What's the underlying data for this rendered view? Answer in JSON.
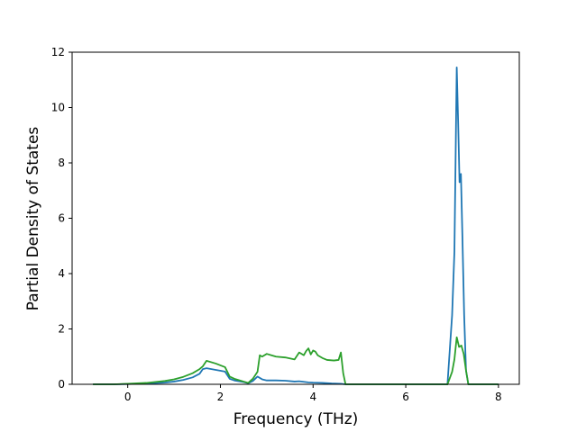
{
  "chart_data": {
    "type": "line",
    "title": "",
    "xlabel": "Frequency (THz)",
    "ylabel": "Partial Density of States",
    "xlim": [
      -1.2,
      8.45
    ],
    "ylim": [
      0,
      12
    ],
    "xticks": [
      0,
      2,
      4,
      6,
      8
    ],
    "yticks": [
      0,
      2,
      4,
      6,
      8,
      10,
      12
    ],
    "grid": false,
    "legend": "none",
    "series": [
      {
        "color": "#1f77b4",
        "x": [
          -0.75,
          -0.3,
          0,
          0.4,
          0.8,
          1.0,
          1.2,
          1.4,
          1.55,
          1.62,
          1.7,
          1.9,
          2.1,
          2.2,
          2.3,
          2.5,
          2.6,
          2.7,
          2.8,
          2.9,
          3.0,
          3.2,
          3.4,
          3.6,
          3.7,
          3.8,
          3.9,
          4.0,
          4.2,
          4.4,
          4.6,
          4.7,
          5.0,
          6.0,
          6.9,
          7.0,
          7.05,
          7.1,
          7.13,
          7.16,
          7.19,
          7.22,
          7.26,
          7.3,
          7.35,
          8.0
        ],
        "y": [
          0,
          0,
          0.01,
          0.03,
          0.06,
          0.1,
          0.16,
          0.25,
          0.38,
          0.55,
          0.58,
          0.52,
          0.46,
          0.2,
          0.14,
          0.08,
          0.04,
          0.12,
          0.28,
          0.18,
          0.14,
          0.14,
          0.13,
          0.1,
          0.11,
          0.09,
          0.07,
          0.06,
          0.05,
          0.03,
          0.02,
          0,
          0,
          0,
          0,
          2.5,
          4.8,
          11.45,
          9.5,
          7.3,
          7.6,
          5.5,
          2.5,
          0.5,
          0,
          0
        ]
      },
      {
        "color": "#2ca02c",
        "x": [
          -0.75,
          -0.3,
          0,
          0.4,
          0.8,
          1.0,
          1.2,
          1.4,
          1.55,
          1.62,
          1.7,
          1.9,
          2.1,
          2.2,
          2.3,
          2.5,
          2.6,
          2.7,
          2.8,
          2.85,
          2.9,
          3.0,
          3.1,
          3.2,
          3.4,
          3.6,
          3.7,
          3.8,
          3.85,
          3.9,
          3.95,
          4.0,
          4.05,
          4.1,
          4.2,
          4.3,
          4.45,
          4.55,
          4.6,
          4.65,
          4.7,
          5.0,
          6.0,
          6.9,
          7.0,
          7.05,
          7.1,
          7.15,
          7.2,
          7.25,
          7.3,
          7.35,
          8.0
        ],
        "y": [
          0,
          0,
          0.02,
          0.05,
          0.12,
          0.18,
          0.27,
          0.4,
          0.55,
          0.65,
          0.85,
          0.75,
          0.62,
          0.28,
          0.2,
          0.1,
          0.05,
          0.2,
          0.45,
          1.05,
          1.0,
          1.1,
          1.05,
          1.0,
          0.97,
          0.9,
          1.15,
          1.05,
          1.2,
          1.3,
          1.08,
          1.22,
          1.18,
          1.05,
          0.95,
          0.88,
          0.86,
          0.88,
          1.15,
          0.4,
          0,
          0,
          0,
          0,
          0.45,
          0.9,
          1.7,
          1.35,
          1.4,
          1.1,
          0.5,
          0,
          0
        ]
      }
    ]
  }
}
